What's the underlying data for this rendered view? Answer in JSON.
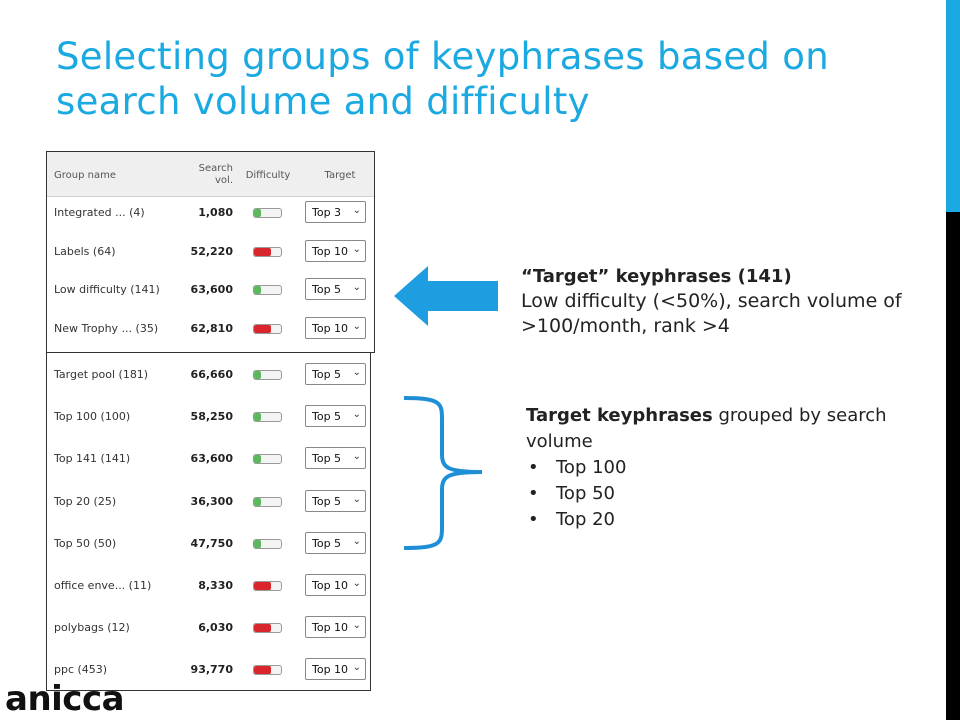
{
  "title": "Selecting groups of keyphrases based on search volume and difficulty",
  "table": {
    "headers": {
      "group_name": "Group name",
      "search_vol": "Search vol.",
      "difficulty": "Difficulty",
      "target": "Target"
    },
    "selected_rows": [
      {
        "name": "Integrated ... (4)",
        "volume": "1,080",
        "difficulty": "low",
        "difficulty_color": "#5cb85c",
        "target": "Top 3"
      },
      {
        "name": "Labels (64)",
        "volume": "52,220",
        "difficulty": "high",
        "difficulty_color": "#d9262c",
        "target": "Top 10"
      },
      {
        "name": "Low difficulty (141)",
        "volume": "63,600",
        "difficulty": "low",
        "difficulty_color": "#5cb85c",
        "target": "Top 5"
      },
      {
        "name": "New Trophy ... (35)",
        "volume": "62,810",
        "difficulty": "high",
        "difficulty_color": "#d9262c",
        "target": "Top 10"
      }
    ],
    "other_rows": [
      {
        "name": "Target pool (181)",
        "volume": "66,660",
        "difficulty": "low",
        "difficulty_color": "#5cb85c",
        "target": "Top 5"
      },
      {
        "name": "Top 100 (100)",
        "volume": "58,250",
        "difficulty": "low",
        "difficulty_color": "#5cb85c",
        "target": "Top 5"
      },
      {
        "name": "Top 141 (141)",
        "volume": "63,600",
        "difficulty": "low",
        "difficulty_color": "#5cb85c",
        "target": "Top 5"
      },
      {
        "name": "Top 20 (25)",
        "volume": "36,300",
        "difficulty": "low",
        "difficulty_color": "#5cb85c",
        "target": "Top 5"
      },
      {
        "name": "Top 50 (50)",
        "volume": "47,750",
        "difficulty": "low",
        "difficulty_color": "#5cb85c",
        "target": "Top 5"
      },
      {
        "name": "office enve... (11)",
        "volume": "8,330",
        "difficulty": "high",
        "difficulty_color": "#d9262c",
        "target": "Top 10"
      },
      {
        "name": "polybags (12)",
        "volume": "6,030",
        "difficulty": "high",
        "difficulty_color": "#d9262c",
        "target": "Top 10"
      },
      {
        "name": "ppc (453)",
        "volume": "93,770",
        "difficulty": "high",
        "difficulty_color": "#d9262c",
        "target": "Top 10"
      }
    ]
  },
  "callout_target": {
    "heading": "“Target” keyphrases (141)",
    "text": "Low difficulty (<50%), search volume of >100/month, rank >4"
  },
  "callout_grouped": {
    "heading_bold": "Target keyphrases",
    "heading_rest": " grouped by search volume",
    "bullets": [
      "Top 100",
      "Top 50",
      "Top 20"
    ]
  },
  "logo": "anicca",
  "colors": {
    "accent": "#1ba9e1",
    "arrow": "#1e9de0",
    "brace": "#1e8fd6",
    "good": "#5cb85c",
    "bad": "#d9262c"
  },
  "icons": {
    "select_chevron": "chevron-down-icon",
    "arrow": "left-arrow-icon",
    "brace": "right-brace-icon"
  }
}
